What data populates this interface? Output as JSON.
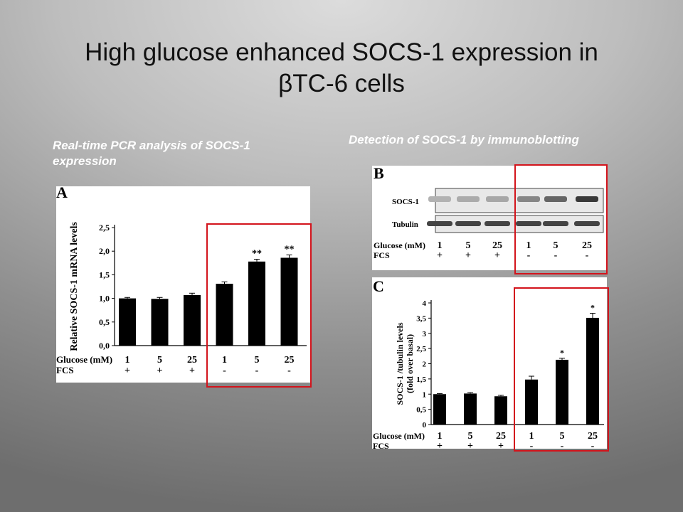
{
  "slide": {
    "title_line1": "High glucose enhanced SOCS-1 expression in",
    "title_line2": "βTC-6 cells",
    "subtitle_left": "Real-time PCR analysis of SOCS-1 expression",
    "subtitle_right": "Detection of SOCS-1  by immunoblotting"
  },
  "blot": {
    "panel_letter": "B",
    "row_labels": [
      "SOCS-1",
      "Tubulin"
    ],
    "glucose_label": "Glucose (mM)",
    "fcs_label": "FCS",
    "glucose": [
      "1",
      "5",
      "25",
      "1",
      "5",
      "25"
    ],
    "fcs": [
      "+",
      "+",
      "+",
      "-",
      "-",
      "-"
    ],
    "socs1_intensity": [
      0.35,
      0.38,
      0.4,
      0.55,
      0.7,
      0.9
    ],
    "tubulin_intensity": [
      0.85,
      0.85,
      0.85,
      0.85,
      0.85,
      0.85
    ]
  },
  "highlight_color": "#d3141c",
  "chart_data": [
    {
      "panel_letter": "A",
      "type": "bar",
      "categories": [
        "1",
        "5",
        "25",
        "1",
        "5",
        "25"
      ],
      "glucose_label": "Glucose (mM)",
      "fcs_label": "FCS",
      "fcs": [
        "+",
        "+",
        "+",
        "-",
        "-",
        "-"
      ],
      "values": [
        1.0,
        0.99,
        1.07,
        1.31,
        1.78,
        1.86
      ],
      "errors": [
        0.02,
        0.03,
        0.04,
        0.04,
        0.05,
        0.06
      ],
      "annotations": [
        "",
        "",
        "",
        "",
        "**",
        "**"
      ],
      "ylabel": "Relative SOCS-1 mRNA levels",
      "ylim": [
        0,
        2.5
      ],
      "yticks": [
        "0,0",
        "0,5",
        "1,0",
        "1,5",
        "2,0",
        "2,5"
      ],
      "grid": false
    },
    {
      "panel_letter": "C",
      "type": "bar",
      "categories": [
        "1",
        "5",
        "25",
        "1",
        "5",
        "25"
      ],
      "glucose_label": "Glucose (mM)",
      "fcs_label": "FCS",
      "fcs": [
        "+",
        "+",
        "+",
        "-",
        "-",
        "-"
      ],
      "values": [
        1.0,
        1.02,
        0.93,
        1.48,
        2.13,
        3.51
      ],
      "errors": [
        0.02,
        0.03,
        0.03,
        0.11,
        0.05,
        0.15
      ],
      "annotations": [
        "",
        "",
        "",
        "",
        "*",
        "*"
      ],
      "ylabel_line1": "SOCS-1 /tubulin levels",
      "ylabel_line2": "(fold over basal)",
      "ylim": [
        0,
        4
      ],
      "yticks": [
        "0",
        "0,5",
        "1",
        "1,5",
        "2",
        "2,5",
        "3",
        "3,5",
        "4"
      ],
      "grid": false
    }
  ]
}
